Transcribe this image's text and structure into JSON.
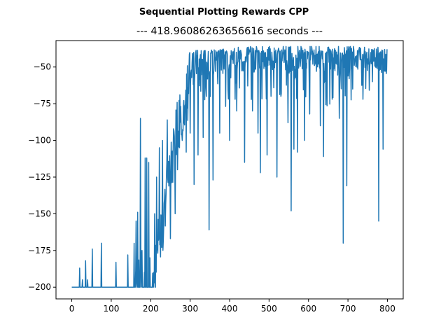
{
  "figure": {
    "suptitle": "Sequential Plotting Rewards CPP",
    "title": "--- 418.96086263656616 seconds ---"
  },
  "colors": {
    "line": "#1f77b4",
    "axes": "#000000",
    "background": "#ffffff"
  },
  "chart_data": {
    "type": "line",
    "title": "--- 418.96086263656616 seconds ---",
    "suptitle": "Sequential Plotting Rewards CPP",
    "xlabel": "",
    "ylabel": "",
    "xlim": [
      -40,
      840
    ],
    "ylim": [
      -208,
      -32
    ],
    "xticks": [
      0,
      100,
      200,
      300,
      400,
      500,
      600,
      700,
      800
    ],
    "yticks": [
      -200,
      -175,
      -150,
      -125,
      -100,
      -75,
      -50
    ],
    "grid": false,
    "legend": "none",
    "anchors": [
      [
        0,
        -200
      ],
      [
        150,
        -200
      ],
      [
        205,
        -200
      ],
      [
        215,
        -170
      ],
      [
        230,
        -155
      ],
      [
        245,
        -125
      ],
      [
        255,
        -100
      ],
      [
        265,
        -90
      ],
      [
        280,
        -78
      ],
      [
        290,
        -65
      ],
      [
        300,
        -55
      ],
      [
        330,
        -48
      ],
      [
        380,
        -46
      ],
      [
        450,
        -44
      ],
      [
        550,
        -44
      ],
      [
        650,
        -44
      ],
      [
        750,
        -44
      ],
      [
        800,
        -46
      ]
    ],
    "spikes": [
      [
        20,
        -187
      ],
      [
        27,
        -195
      ],
      [
        35,
        -182
      ],
      [
        40,
        -195
      ],
      [
        52,
        -174
      ],
      [
        75,
        -170
      ],
      [
        112,
        -183
      ],
      [
        142,
        -178
      ],
      [
        163,
        -155
      ],
      [
        167,
        -149
      ],
      [
        174,
        -85
      ],
      [
        178,
        -175
      ],
      [
        186,
        -112
      ],
      [
        190,
        -112
      ],
      [
        195,
        -115
      ],
      [
        198,
        -180
      ],
      [
        210,
        -150
      ],
      [
        215,
        -125
      ],
      [
        222,
        -105
      ],
      [
        230,
        -100
      ],
      [
        235,
        -140
      ],
      [
        242,
        -86
      ],
      [
        250,
        -167
      ],
      [
        262,
        -150
      ],
      [
        268,
        -120
      ],
      [
        280,
        -100
      ],
      [
        290,
        -108
      ],
      [
        300,
        -95
      ],
      [
        310,
        -130
      ],
      [
        320,
        -110
      ],
      [
        333,
        -98
      ],
      [
        348,
        -161
      ],
      [
        358,
        -127
      ],
      [
        375,
        -95
      ],
      [
        400,
        -100
      ],
      [
        418,
        -80
      ],
      [
        438,
        -115
      ],
      [
        458,
        -80
      ],
      [
        472,
        -95
      ],
      [
        478,
        -122
      ],
      [
        495,
        -110
      ],
      [
        505,
        -70
      ],
      [
        520,
        -125
      ],
      [
        530,
        -70
      ],
      [
        548,
        -88
      ],
      [
        556,
        -148
      ],
      [
        563,
        -106
      ],
      [
        572,
        -108
      ],
      [
        590,
        -100
      ],
      [
        603,
        -82
      ],
      [
        630,
        -90
      ],
      [
        638,
        -111
      ],
      [
        660,
        -72
      ],
      [
        678,
        -85
      ],
      [
        688,
        -170
      ],
      [
        697,
        -131
      ],
      [
        712,
        -65
      ],
      [
        738,
        -72
      ],
      [
        762,
        -60
      ],
      [
        778,
        -155
      ],
      [
        789,
        -106
      ],
      [
        798,
        -52
      ]
    ],
    "n_points": 800
  }
}
